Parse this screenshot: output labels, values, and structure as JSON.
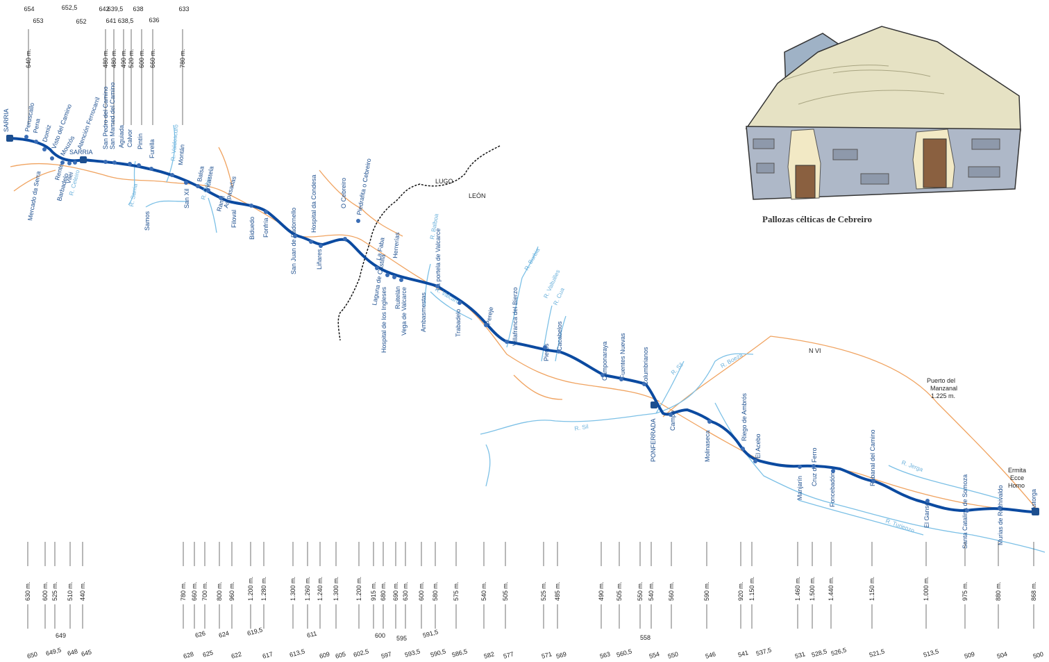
{
  "caption": "Pallozas célticas de Cebreiro",
  "regions": {
    "north": "LUGO",
    "south": "LEÓN"
  },
  "road_label": "N VI",
  "pass_label": [
    "Puerto del",
    "Manzanal",
    "1.225 m."
  ],
  "hermitage_label": [
    "Ermita",
    "Ecce",
    "Homo"
  ],
  "colors": {
    "route": "#0b4aa0",
    "rivers": "#7cc0e6",
    "roads": "#f0a360",
    "border": "#111111",
    "text": "#1d4f8f"
  },
  "top_km": [
    "654",
    "653",
    "652,5",
    "652",
    "642",
    "641",
    "639,5",
    "638,5",
    "638",
    "636",
    "633"
  ],
  "top_alt": [
    "640 m.",
    "480 m.",
    "480 m.",
    "490 m.",
    "520 m.",
    "600 m.",
    "660 m.",
    "780 m."
  ],
  "top_places": [
    "SARRIA",
    "Peruscallo",
    "Pena",
    "Domiz",
    "Visto del Camino",
    "Mouzós",
    "Atención Ferrocarril",
    "SARRIA",
    "San Pedro del Camino",
    "San Mamed del Camino",
    "Aguiada",
    "Calvor",
    "Pintín",
    "Furella",
    "Montán",
    "R. Valdoscuro"
  ],
  "places": [
    "Mercado da Serra",
    "Rente",
    "Barbadelo",
    "Vilei",
    "R. Celeiro",
    "R. Sarria",
    "Samos",
    "San Xil",
    "Balsa",
    "R. Oribio",
    "Tricastela",
    "Ramil",
    "As pasadas",
    "Filoval",
    "Biduedo",
    "Fonfría",
    "San Juan de Padornello",
    "Hospital da Condesa",
    "Liñares",
    "O Cebreiro",
    "Piedrafita o Cebreiro",
    "Laguna de Castilla",
    "La Faba",
    "Herrerías",
    "Hospital de los Ingleses",
    "Ruitelán",
    "Vega de Valcarce",
    "R. Balboa",
    "La portela de Valcarce",
    "Ambasmestas",
    "R. Valcarce",
    "Trabadelo",
    "Pereje",
    "R. Burbia",
    "Villafranca del Bierzo",
    "R. Valtuilles",
    "R. Cua",
    "Pieros",
    "Cacabelos",
    "Camponaraya",
    "Fuentes Nuevas",
    "Columbrianos",
    "R. Sil",
    "R. Boeza",
    "PONFERRADA",
    "Campo",
    "R. Sil",
    "Molinaseca",
    "Riego de Ambrós",
    "El Acebo",
    "Manjarín",
    "Cruz de Ferro",
    "Foncebadón",
    "Rabanal del Camino",
    "R. Jerga",
    "El Ganso",
    "R. Turienzo",
    "Santa Catalina de Somoza",
    "Murias de Rechivaldo",
    "Astorga"
  ],
  "bottom_alt": [
    "630 m.",
    "600 m.",
    "525 m.",
    "510 m.",
    "440 m.",
    "780 m.",
    "660 m.",
    "700 m.",
    "800 m.",
    "960 m.",
    "1.200 m.",
    "1.280 m.",
    "1.300 m.",
    "1.260 m.",
    "1.240 m.",
    "1.300 m.",
    "1.200 m.",
    "915 m.",
    "680 m.",
    "690 m.",
    "630 m.",
    "600 m.",
    "580 m.",
    "575 m.",
    "540 m.",
    "505 m.",
    "525 m.",
    "485 m.",
    "490 m.",
    "505 m.",
    "550 m.",
    "540 m.",
    "560 m.",
    "590 m.",
    "920 m.",
    "1.150 m.",
    "1.460 m.",
    "1.500 m.",
    "1.440 m.",
    "1.150 m.",
    "1.000 m.",
    "975 m.",
    "880 m.",
    "868 m."
  ],
  "bottom_km": [
    "650",
    "649,5",
    "649",
    "648",
    "645",
    "628",
    "626",
    "625",
    "624",
    "622",
    "619,5",
    "617",
    "613,5",
    "611",
    "609",
    "605",
    "602,5",
    "600",
    "597",
    "595",
    "593,5",
    "591,5",
    "590,5",
    "586,5",
    "582",
    "577",
    "571",
    "569",
    "563",
    "560,5",
    "558",
    "554",
    "550",
    "546",
    "541",
    "537,5",
    "531",
    "528,5",
    "526,5",
    "521,5",
    "513,5",
    "509",
    "504",
    "500"
  ]
}
